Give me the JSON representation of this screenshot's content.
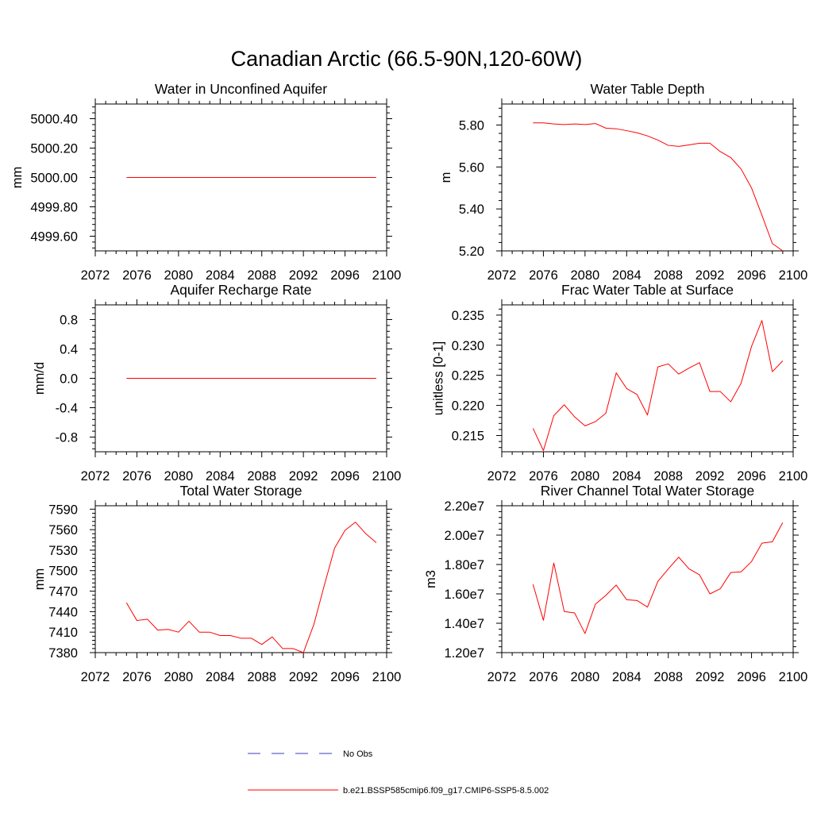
{
  "figure_title": "Canadian Arctic (66.5-90N,120-60W)",
  "legend": [
    {
      "label": "No Obs",
      "color": "#3b3bc4",
      "style": "dashed"
    },
    {
      "label": "b.e21.BSSP585cmip6.f09_g17.CMIP6-SSP5-8.5.002",
      "color": "#ff0000",
      "style": "solid"
    }
  ],
  "chart_data": [
    {
      "type": "line",
      "title": "Water in Unconfined Aquifer",
      "xlabel": "",
      "ylabel": "mm",
      "xlim": [
        2072,
        2100
      ],
      "ylim": [
        4999.5,
        5000.5
      ],
      "xticks": [
        2072,
        2076,
        2080,
        2084,
        2088,
        2092,
        2096,
        2100
      ],
      "xtick_labels": [
        "2072",
        "2076",
        "2080",
        "2084",
        "2088",
        "2092",
        "2096",
        "2100"
      ],
      "yticks": [
        4999.6,
        4999.8,
        5000.0,
        5000.2,
        5000.4
      ],
      "ytick_labels": [
        "4999.60",
        "4999.80",
        "5000.00",
        "5000.20",
        "5000.40"
      ],
      "series": [
        {
          "name": "b.e21.BSSP585cmip6.f09_g17.CMIP6-SSP5-8.5.002",
          "color": "#ff0000",
          "x": [
            2075,
            2076,
            2077,
            2078,
            2079,
            2080,
            2081,
            2082,
            2083,
            2084,
            2085,
            2086,
            2087,
            2088,
            2089,
            2090,
            2091,
            2092,
            2093,
            2094,
            2095,
            2096,
            2097,
            2098,
            2099
          ],
          "values": [
            5000.0,
            5000.0,
            5000.0,
            5000.0,
            5000.0,
            5000.0,
            5000.0,
            5000.0,
            5000.0,
            5000.0,
            5000.0,
            5000.0,
            5000.0,
            5000.0,
            5000.0,
            5000.0,
            5000.0,
            5000.0,
            5000.0,
            5000.0,
            5000.0,
            5000.0,
            5000.0,
            5000.0,
            5000.0
          ]
        }
      ]
    },
    {
      "type": "line",
      "title": "Water Table Depth",
      "xlabel": "",
      "ylabel": "m",
      "xlim": [
        2072,
        2100
      ],
      "ylim": [
        5.2,
        5.9
      ],
      "xticks": [
        2072,
        2076,
        2080,
        2084,
        2088,
        2092,
        2096,
        2100
      ],
      "xtick_labels": [
        "2072",
        "2076",
        "2080",
        "2084",
        "2088",
        "2092",
        "2096",
        "2100"
      ],
      "yticks": [
        5.2,
        5.4,
        5.6,
        5.8
      ],
      "ytick_labels": [
        "5.20",
        "5.40",
        "5.60",
        "5.80"
      ],
      "series": [
        {
          "name": "b.e21.BSSP585cmip6.f09_g17.CMIP6-SSP5-8.5.002",
          "color": "#ff0000",
          "x": [
            2075,
            2076,
            2077,
            2078,
            2079,
            2080,
            2081,
            2082,
            2083,
            2084,
            2085,
            2086,
            2087,
            2088,
            2089,
            2090,
            2091,
            2092,
            2093,
            2094,
            2095,
            2096,
            2097,
            2098,
            2099
          ],
          "values": [
            5.81,
            5.81,
            5.805,
            5.802,
            5.805,
            5.802,
            5.807,
            5.785,
            5.782,
            5.773,
            5.763,
            5.748,
            5.728,
            5.703,
            5.698,
            5.705,
            5.713,
            5.713,
            5.673,
            5.645,
            5.59,
            5.5,
            5.37,
            5.235,
            5.2
          ]
        }
      ]
    },
    {
      "type": "line",
      "title": "Aquifer Recharge Rate",
      "xlabel": "",
      "ylabel": "mm/d",
      "xlim": [
        2072,
        2100
      ],
      "ylim": [
        -1.0,
        1.0
      ],
      "xticks": [
        2072,
        2076,
        2080,
        2084,
        2088,
        2092,
        2096,
        2100
      ],
      "xtick_labels": [
        "2072",
        "2076",
        "2080",
        "2084",
        "2088",
        "2092",
        "2096",
        "2100"
      ],
      "yticks": [
        -0.8,
        -0.4,
        0.0,
        0.4,
        0.8
      ],
      "ytick_labels": [
        "-0.8",
        "-0.4",
        "0.0",
        "0.4",
        "0.8"
      ],
      "series": [
        {
          "name": "b.e21.BSSP585cmip6.f09_g17.CMIP6-SSP5-8.5.002",
          "color": "#ff0000",
          "x": [
            2075,
            2076,
            2077,
            2078,
            2079,
            2080,
            2081,
            2082,
            2083,
            2084,
            2085,
            2086,
            2087,
            2088,
            2089,
            2090,
            2091,
            2092,
            2093,
            2094,
            2095,
            2096,
            2097,
            2098,
            2099
          ],
          "values": [
            0.0,
            0.0,
            0.0,
            0.0,
            0.0,
            0.0,
            0.0,
            0.0,
            0.0,
            0.0,
            0.0,
            0.0,
            0.0,
            0.0,
            0.0,
            0.0,
            0.0,
            0.0,
            0.0,
            0.0,
            0.0,
            0.0,
            0.0,
            0.0,
            0.0
          ]
        }
      ]
    },
    {
      "type": "line",
      "title": "Frac Water Table at Surface",
      "xlabel": "",
      "ylabel": "unitless [0-1]",
      "xlim": [
        2072,
        2100
      ],
      "ylim": [
        0.2123,
        0.2367
      ],
      "xticks": [
        2072,
        2076,
        2080,
        2084,
        2088,
        2092,
        2096,
        2100
      ],
      "xtick_labels": [
        "2072",
        "2076",
        "2080",
        "2084",
        "2088",
        "2092",
        "2096",
        "2100"
      ],
      "yticks": [
        0.215,
        0.22,
        0.225,
        0.23,
        0.235
      ],
      "ytick_labels": [
        "0.215",
        "0.220",
        "0.225",
        "0.230",
        "0.235"
      ],
      "series": [
        {
          "name": "b.e21.BSSP585cmip6.f09_g17.CMIP6-SSP5-8.5.002",
          "color": "#ff0000",
          "x": [
            2075,
            2076,
            2077,
            2078,
            2079,
            2080,
            2081,
            2082,
            2083,
            2084,
            2085,
            2086,
            2087,
            2088,
            2089,
            2090,
            2091,
            2092,
            2093,
            2094,
            2095,
            2096,
            2097,
            2098,
            2099
          ],
          "values": [
            0.2162,
            0.2125,
            0.2183,
            0.2201,
            0.2181,
            0.2166,
            0.2173,
            0.2187,
            0.2254,
            0.2228,
            0.2218,
            0.2184,
            0.2264,
            0.2269,
            0.2252,
            0.2262,
            0.2271,
            0.2223,
            0.2223,
            0.2206,
            0.2237,
            0.2298,
            0.2341,
            0.2256,
            0.2274
          ]
        }
      ]
    },
    {
      "type": "line",
      "title": "Total Water Storage",
      "xlabel": "",
      "ylabel": "mm",
      "xlim": [
        2072,
        2100
      ],
      "ylim": [
        7380,
        7595
      ],
      "xticks": [
        2072,
        2076,
        2080,
        2084,
        2088,
        2092,
        2096,
        2100
      ],
      "xtick_labels": [
        "2072",
        "2076",
        "2080",
        "2084",
        "2088",
        "2092",
        "2096",
        "2100"
      ],
      "yticks": [
        7380,
        7410,
        7440,
        7470,
        7500,
        7530,
        7560,
        7590
      ],
      "ytick_labels": [
        "7380",
        "7410",
        "7440",
        "7470",
        "7500",
        "7530",
        "7560",
        "7590"
      ],
      "series": [
        {
          "name": "b.e21.BSSP585cmip6.f09_g17.CMIP6-SSP5-8.5.002",
          "color": "#ff0000",
          "x": [
            2075,
            2076,
            2077,
            2078,
            2079,
            2080,
            2081,
            2082,
            2083,
            2084,
            2085,
            2086,
            2087,
            2088,
            2089,
            2090,
            2091,
            2092,
            2093,
            2094,
            2095,
            2096,
            2097,
            2098,
            2099
          ],
          "values": [
            7453,
            7427,
            7429,
            7413,
            7414,
            7410,
            7426,
            7410,
            7410,
            7405,
            7405,
            7401,
            7401,
            7392,
            7403,
            7386,
            7386,
            7380,
            7421,
            7478,
            7533,
            7559,
            7571,
            7554,
            7541
          ]
        }
      ]
    },
    {
      "type": "line",
      "title": "River Channel Total Water Storage",
      "xlabel": "",
      "ylabel": "m3",
      "xlim": [
        2072,
        2100
      ],
      "ylim": [
        12000000,
        22000000
      ],
      "xticks": [
        2072,
        2076,
        2080,
        2084,
        2088,
        2092,
        2096,
        2100
      ],
      "xtick_labels": [
        "2072",
        "2076",
        "2080",
        "2084",
        "2088",
        "2092",
        "2096",
        "2100"
      ],
      "yticks": [
        12000000,
        14000000,
        16000000,
        18000000,
        20000000,
        22000000
      ],
      "ytick_labels": [
        "1.20e7",
        "1.40e7",
        "1.60e7",
        "1.80e7",
        "2.00e7",
        "2.20e7"
      ],
      "series": [
        {
          "name": "b.e21.BSSP585cmip6.f09_g17.CMIP6-SSP5-8.5.002",
          "color": "#ff0000",
          "x": [
            2075,
            2076,
            2077,
            2078,
            2079,
            2080,
            2081,
            2082,
            2083,
            2084,
            2085,
            2086,
            2087,
            2088,
            2089,
            2090,
            2091,
            2092,
            2093,
            2094,
            2095,
            2096,
            2097,
            2098,
            2099
          ],
          "values": [
            16650000,
            14200000,
            18100000,
            14800000,
            14700000,
            13300000,
            15300000,
            15900000,
            16600000,
            15600000,
            15550000,
            15100000,
            16850000,
            17700000,
            18500000,
            17700000,
            17300000,
            16000000,
            16350000,
            17450000,
            17500000,
            18200000,
            19450000,
            19550000,
            20850000
          ]
        }
      ]
    }
  ]
}
